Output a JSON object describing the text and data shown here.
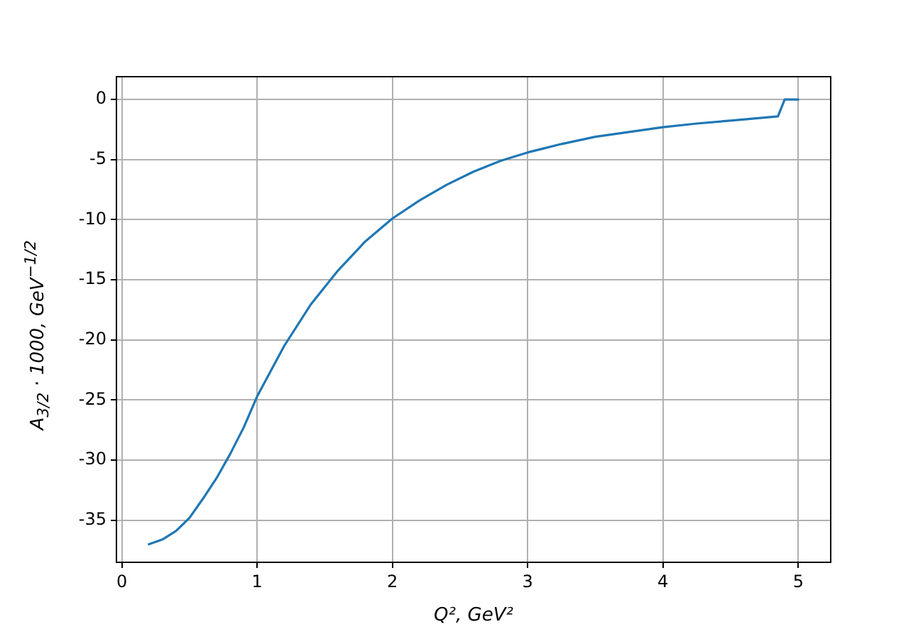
{
  "chart_data": {
    "type": "line",
    "xlabel": "Q², GeV²",
    "ylabel": "A$_{3/2}$ · 1000, GeV$^{−1/2}$",
    "xlim": [
      -0.04,
      5.24
    ],
    "xticks": [
      0,
      1,
      2,
      3,
      4,
      5
    ],
    "ylim": [
      -38.5,
      1.9
    ],
    "yticks": [
      -35,
      -30,
      -25,
      -20,
      -15,
      -10,
      -5,
      0
    ],
    "grid": true,
    "legend": false,
    "marker": "none",
    "line_style": "solid",
    "series": [
      {
        "color": "#1f77b4",
        "x": [
          0.2,
          0.3,
          0.4,
          0.5,
          0.6,
          0.7,
          0.8,
          0.9,
          1.0,
          1.2,
          1.4,
          1.6,
          1.8,
          2.0,
          2.2,
          2.4,
          2.6,
          2.8,
          3.0,
          3.25,
          3.5,
          3.75,
          4.0,
          4.25,
          4.5,
          4.75,
          4.85,
          4.9,
          5.0
        ],
        "values": [
          -37.0,
          -36.6,
          -35.9,
          -34.8,
          -33.2,
          -31.5,
          -29.5,
          -27.3,
          -24.7,
          -20.5,
          -17.0,
          -14.2,
          -11.8,
          -9.9,
          -8.4,
          -7.1,
          -6.0,
          -5.1,
          -4.4,
          -3.7,
          -3.1,
          -2.7,
          -2.3,
          -2.0,
          -1.75,
          -1.5,
          -1.4,
          0,
          0
        ]
      }
    ]
  }
}
